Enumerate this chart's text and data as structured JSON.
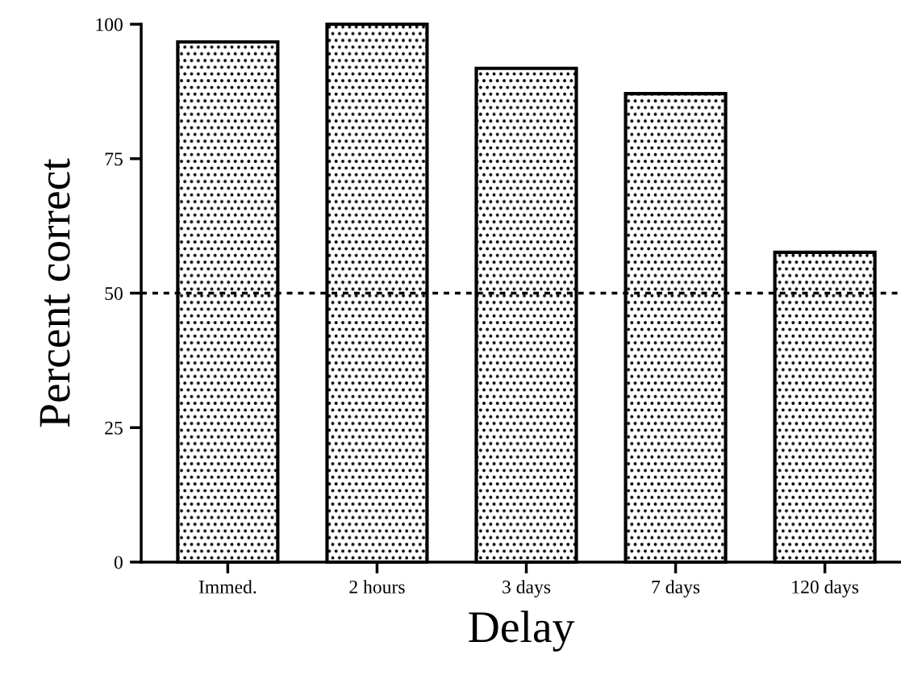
{
  "chart_data": {
    "type": "bar",
    "xlabel": "Delay",
    "ylabel": "Percent correct",
    "categories": [
      "Immed.",
      "2 hours",
      "3 days",
      "7 days",
      "120 days"
    ],
    "values": [
      96.7,
      100,
      91.8,
      87.1,
      57.6
    ],
    "color": "#000000",
    "ylim": [
      0,
      100
    ],
    "yticks": [
      0,
      25,
      50,
      75,
      100
    ],
    "grid": false,
    "legend": false,
    "ref_lines": [
      {
        "axis": "y",
        "value": 50,
        "color": "#000000",
        "line_style": "dotted"
      }
    ]
  }
}
